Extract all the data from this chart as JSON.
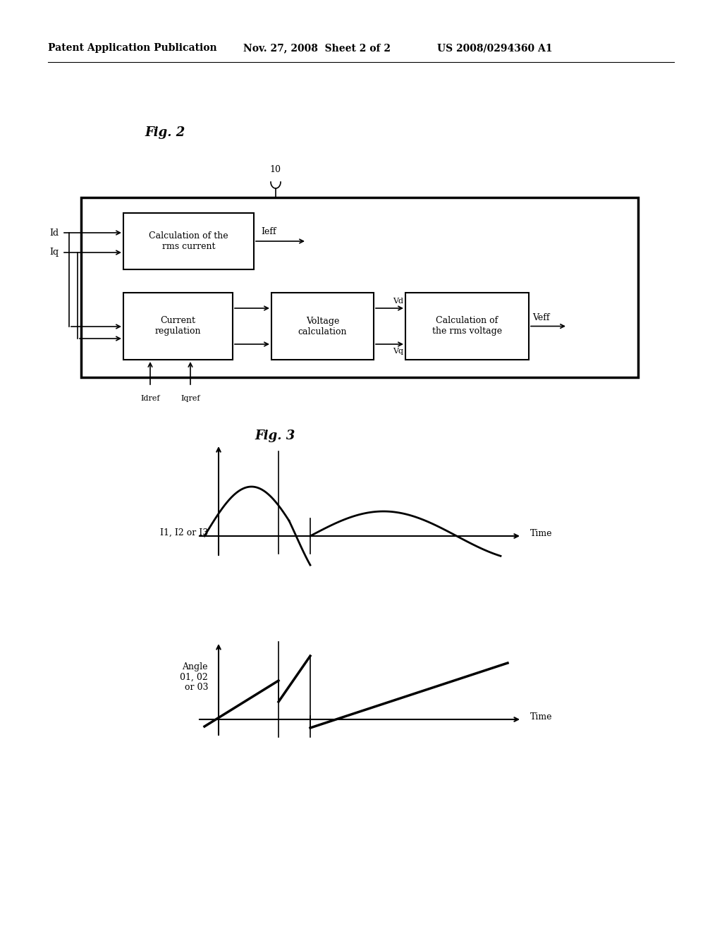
{
  "bg_color": "#ffffff",
  "header_left": "Patent Application Publication",
  "header_mid": "Nov. 27, 2008  Sheet 2 of 2",
  "header_right": "US 2008/0294360 A1",
  "fig2_label": "Fig. 2",
  "fig3_label": "Fig. 3",
  "fig2_ref": "10",
  "box1_text": "Calculation of the\nrms current",
  "box2_text": "Current\nregulation",
  "box3_text": "Voltage\ncalculation",
  "box4_text": "Calculation of\nthe rms voltage",
  "label_Id": "Id",
  "label_Iq": "Iq",
  "label_Ieff": "Ieff",
  "label_Vd": "Vd",
  "label_Vq": "Vq",
  "label_Veff": "Veff",
  "label_Idref": "Idref",
  "label_Iqref": "Iqref",
  "fig3_yaxis1": "I1, I2 or I3",
  "fig3_yaxis2": "Angle\n01, 02\nor 03",
  "fig3_xaxis1": "Time",
  "fig3_xaxis2": "Time",
  "line_color": "#000000",
  "text_color": "#000000",
  "font_size_header": 10,
  "font_size_body": 9,
  "font_size_fig_label": 13
}
